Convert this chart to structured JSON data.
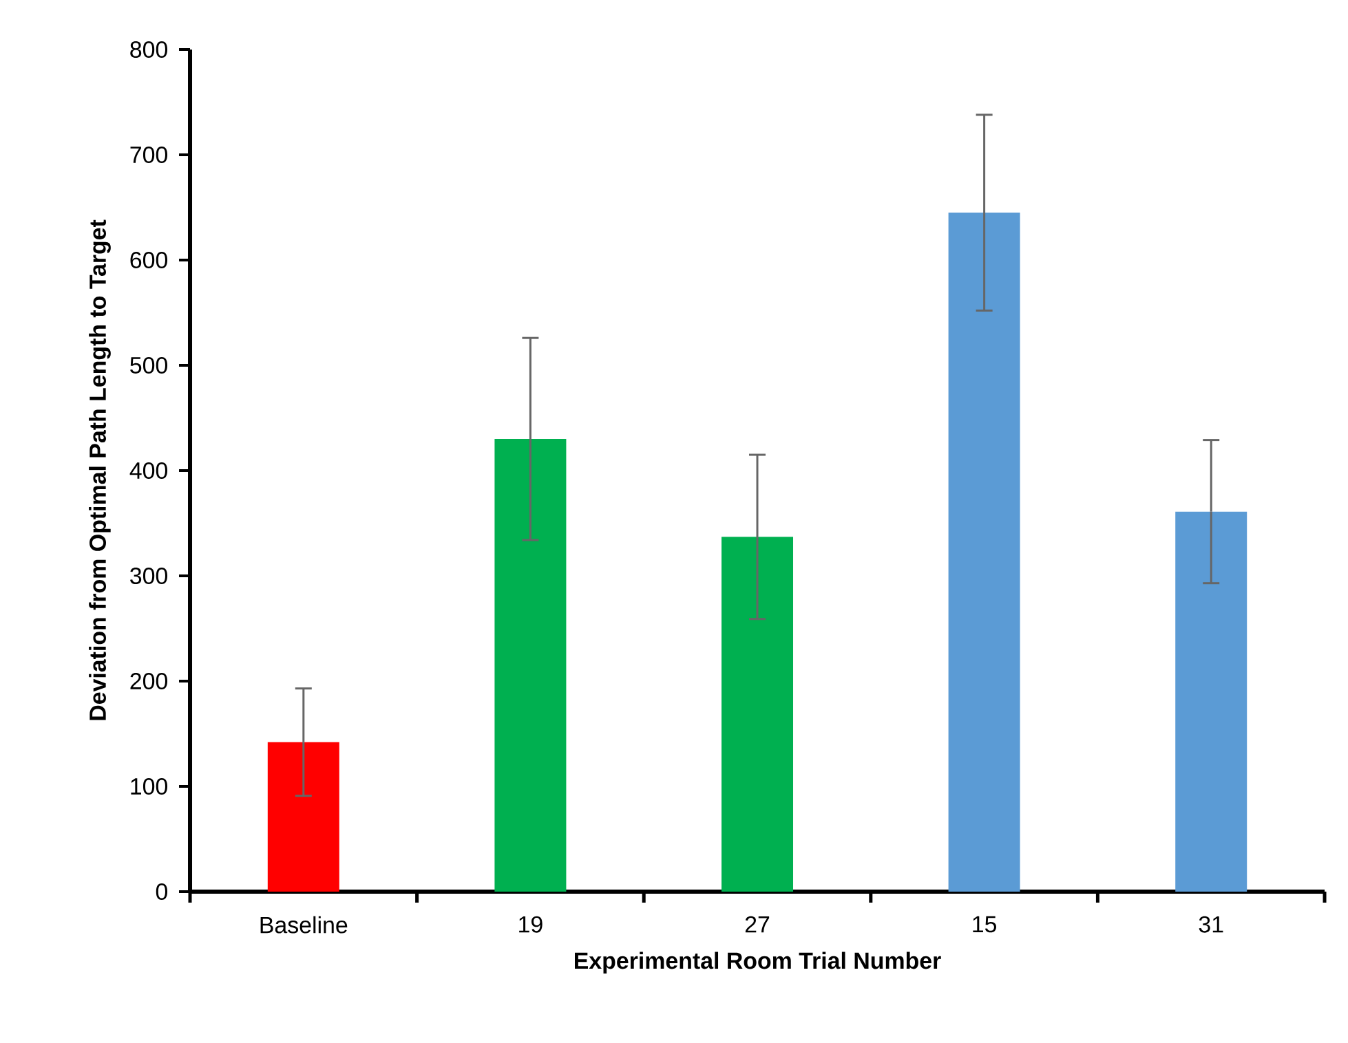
{
  "chart_data": {
    "type": "bar",
    "xlabel": "Experimental Room Trial Number",
    "ylabel": "Deviation from Optimal Path Length to Target",
    "categories": [
      "Baseline",
      "19",
      "27",
      "15",
      "31"
    ],
    "values": [
      142,
      430,
      337,
      645,
      361
    ],
    "errors": [
      51,
      96,
      78,
      93,
      68
    ],
    "colors": [
      "#ff0000",
      "#00b050",
      "#00b050",
      "#5b9bd5",
      "#5b9bd5"
    ],
    "ylim": [
      0,
      800
    ],
    "yticks": [
      0,
      100,
      200,
      300,
      400,
      500,
      600,
      700,
      800
    ]
  }
}
